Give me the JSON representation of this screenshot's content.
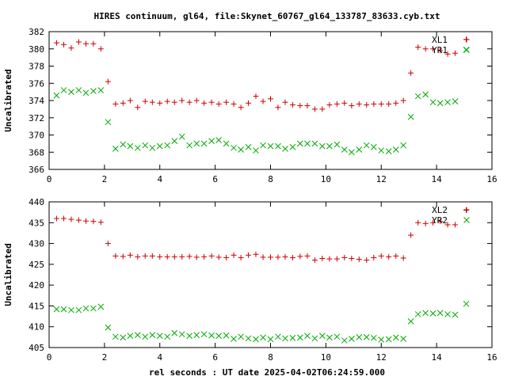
{
  "title": "HIRES continuum, gl64, file:Skynet_60767_gl64_133787_83633.cyb.txt",
  "xlabel": "rel seconds : UT date 2025-04-02T06:24:59.000",
  "colors": {
    "red": "#cc0000",
    "green": "#00aa00",
    "frame": "#000000"
  },
  "chart_data": [
    {
      "type": "scatter",
      "ylabel": "Uncalibrated",
      "xlim": [
        0,
        16
      ],
      "ylim": [
        366,
        382
      ],
      "xticks": [
        0,
        2,
        4,
        6,
        8,
        10,
        12,
        14,
        16
      ],
      "yticks": [
        366,
        368,
        370,
        372,
        374,
        376,
        378,
        380,
        382
      ],
      "legend_position": "top-right",
      "series": [
        {
          "name": "XL1",
          "marker": "+",
          "color": "#cc0000",
          "x": [
            0.27,
            0.53,
            0.8,
            1.07,
            1.33,
            1.6,
            1.87,
            2.13,
            2.4,
            2.67,
            2.93,
            3.2,
            3.47,
            3.73,
            4.0,
            4.27,
            4.53,
            4.8,
            5.07,
            5.33,
            5.6,
            5.87,
            6.13,
            6.4,
            6.67,
            6.93,
            7.2,
            7.47,
            7.73,
            8.0,
            8.27,
            8.53,
            8.8,
            9.07,
            9.33,
            9.6,
            9.87,
            10.13,
            10.4,
            10.67,
            10.93,
            11.2,
            11.47,
            11.73,
            12.0,
            12.27,
            12.53,
            12.8,
            13.07,
            13.33,
            13.6,
            13.87,
            14.13,
            14.4,
            14.67,
            15.07
          ],
          "y": [
            380.7,
            380.5,
            380.1,
            380.8,
            380.6,
            380.6,
            380.0,
            376.2,
            373.6,
            373.7,
            374.0,
            373.2,
            373.9,
            373.8,
            373.7,
            373.9,
            373.8,
            374.0,
            373.8,
            374.0,
            373.7,
            373.8,
            373.6,
            373.8,
            373.6,
            373.2,
            373.7,
            374.5,
            373.9,
            374.2,
            373.2,
            373.8,
            373.5,
            373.4,
            373.4,
            373.0,
            373.0,
            373.5,
            373.6,
            373.7,
            373.4,
            373.6,
            373.5,
            373.6,
            373.6,
            373.6,
            373.7,
            374.0,
            377.2,
            380.2,
            380.0,
            380.0,
            379.8,
            379.4,
            379.5,
            381.1
          ]
        },
        {
          "name": "YR1",
          "marker": "x",
          "color": "#00aa00",
          "x": [
            0.27,
            0.53,
            0.8,
            1.07,
            1.33,
            1.6,
            1.87,
            2.13,
            2.4,
            2.67,
            2.93,
            3.2,
            3.47,
            3.73,
            4.0,
            4.27,
            4.53,
            4.8,
            5.07,
            5.33,
            5.6,
            5.87,
            6.13,
            6.4,
            6.67,
            6.93,
            7.2,
            7.47,
            7.73,
            8.0,
            8.27,
            8.53,
            8.8,
            9.07,
            9.33,
            9.6,
            9.87,
            10.13,
            10.4,
            10.67,
            10.93,
            11.2,
            11.47,
            11.73,
            12.0,
            12.27,
            12.53,
            12.8,
            13.07,
            13.33,
            13.6,
            13.87,
            14.13,
            14.4,
            14.67,
            15.07
          ],
          "y": [
            374.6,
            375.2,
            375.0,
            375.2,
            374.9,
            375.1,
            375.2,
            371.5,
            368.4,
            368.9,
            368.7,
            368.5,
            368.8,
            368.5,
            368.7,
            368.8,
            369.3,
            369.8,
            368.8,
            369.0,
            369.0,
            369.3,
            369.4,
            369.0,
            368.5,
            368.3,
            368.6,
            368.2,
            368.8,
            368.7,
            368.7,
            368.4,
            368.6,
            369.0,
            369.0,
            369.0,
            368.7,
            368.7,
            368.9,
            368.3,
            368.0,
            368.3,
            368.8,
            368.6,
            368.2,
            368.1,
            368.3,
            368.8,
            372.1,
            374.5,
            374.7,
            373.8,
            373.7,
            373.8,
            373.9,
            379.9
          ]
        }
      ]
    },
    {
      "type": "scatter",
      "ylabel": "Uncalibrated",
      "xlim": [
        0,
        16
      ],
      "ylim": [
        405,
        440
      ],
      "xticks": [
        0,
        2,
        4,
        6,
        8,
        10,
        12,
        14,
        16
      ],
      "yticks": [
        405,
        410,
        415,
        420,
        425,
        430,
        435,
        440
      ],
      "legend_position": "top-right",
      "series": [
        {
          "name": "XL2",
          "marker": "+",
          "color": "#cc0000",
          "x": [
            0.27,
            0.53,
            0.8,
            1.07,
            1.33,
            1.6,
            1.87,
            2.13,
            2.4,
            2.67,
            2.93,
            3.2,
            3.47,
            3.73,
            4.0,
            4.27,
            4.53,
            4.8,
            5.07,
            5.33,
            5.6,
            5.87,
            6.13,
            6.4,
            6.67,
            6.93,
            7.2,
            7.47,
            7.73,
            8.0,
            8.27,
            8.53,
            8.8,
            9.07,
            9.33,
            9.6,
            9.87,
            10.13,
            10.4,
            10.67,
            10.93,
            11.2,
            11.47,
            11.73,
            12.0,
            12.27,
            12.53,
            12.8,
            13.07,
            13.33,
            13.6,
            13.87,
            14.13,
            14.4,
            14.67,
            15.07
          ],
          "y": [
            436.0,
            436.0,
            435.8,
            435.6,
            435.4,
            435.3,
            435.1,
            430.0,
            427.0,
            426.9,
            427.2,
            426.8,
            427.0,
            427.0,
            426.8,
            426.8,
            426.8,
            426.8,
            426.9,
            426.7,
            426.8,
            427.0,
            426.7,
            426.6,
            427.2,
            426.6,
            427.2,
            427.4,
            426.7,
            426.7,
            426.7,
            426.8,
            426.6,
            426.9,
            427.0,
            426.0,
            426.4,
            426.3,
            426.3,
            426.6,
            426.4,
            426.2,
            426.0,
            426.6,
            427.0,
            426.8,
            427.0,
            426.5,
            432.0,
            435.0,
            434.8,
            435.0,
            435.3,
            434.5,
            434.5,
            438.0
          ]
        },
        {
          "name": "YR2",
          "marker": "x",
          "color": "#00aa00",
          "x": [
            0.27,
            0.53,
            0.8,
            1.07,
            1.33,
            1.6,
            1.87,
            2.13,
            2.4,
            2.67,
            2.93,
            3.2,
            3.47,
            3.73,
            4.0,
            4.27,
            4.53,
            4.8,
            5.07,
            5.33,
            5.6,
            5.87,
            6.13,
            6.4,
            6.67,
            6.93,
            7.2,
            7.47,
            7.73,
            8.0,
            8.27,
            8.53,
            8.8,
            9.07,
            9.33,
            9.6,
            9.87,
            10.13,
            10.4,
            10.67,
            10.93,
            11.2,
            11.47,
            11.73,
            12.0,
            12.27,
            12.53,
            12.8,
            13.07,
            13.33,
            13.6,
            13.87,
            14.13,
            14.4,
            14.67,
            15.07
          ],
          "y": [
            414.2,
            414.2,
            414.0,
            414.0,
            414.4,
            414.4,
            414.8,
            409.8,
            407.6,
            407.4,
            407.8,
            408.0,
            407.6,
            408.0,
            407.8,
            407.6,
            408.5,
            408.2,
            407.8,
            408.0,
            408.2,
            407.9,
            407.8,
            407.9,
            407.1,
            407.6,
            407.2,
            407.0,
            407.4,
            407.0,
            407.6,
            407.2,
            407.3,
            407.4,
            407.8,
            407.2,
            407.8,
            407.4,
            407.6,
            406.7,
            407.1,
            407.5,
            407.5,
            407.3,
            406.9,
            407.0,
            407.4,
            407.1,
            411.3,
            413.0,
            413.3,
            413.2,
            413.3,
            413.0,
            412.9,
            415.5
          ]
        }
      ]
    }
  ]
}
